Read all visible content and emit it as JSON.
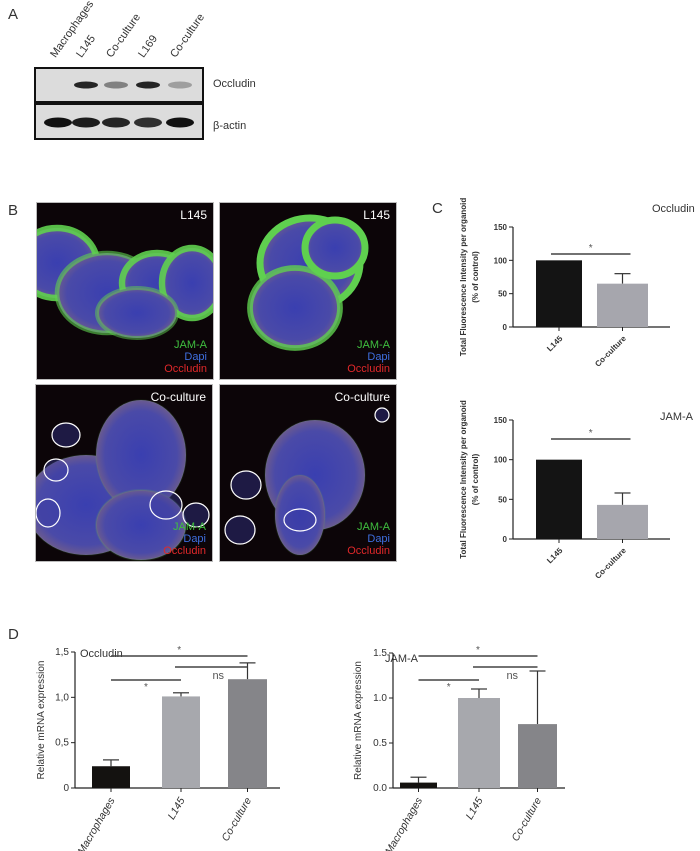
{
  "panels": {
    "a": "A",
    "b": "B",
    "c": "C",
    "d": "D"
  },
  "blot": {
    "lanes": [
      "Macrophages",
      "L145",
      "Co-culture",
      "L169",
      "Co-culture"
    ],
    "rows": [
      {
        "label": "Occludin",
        "band_intensity": [
          0,
          0.9,
          0.45,
          0.9,
          0.3
        ]
      },
      {
        "label": "β-actin",
        "band_intensity": [
          1,
          0.95,
          0.9,
          0.85,
          1
        ]
      }
    ]
  },
  "microscopy": {
    "images": [
      {
        "condition": "L145"
      },
      {
        "condition": "L145"
      },
      {
        "condition": "Co-culture"
      },
      {
        "condition": "Co-culture"
      }
    ],
    "channels": [
      {
        "name": "JAM-A",
        "color": "#3fbf3f"
      },
      {
        "name": "Dapi",
        "color": "#3f6fdf"
      },
      {
        "name": "Occludin",
        "color": "#e0282a"
      }
    ]
  },
  "chart_data": [
    {
      "id": "c-occludin",
      "type": "bar",
      "title": "Occludin",
      "ylabel_lines": [
        "Total Fluorescence Intensity per organoid",
        "(% of control)"
      ],
      "categories": [
        "L145",
        "Co-culture"
      ],
      "values": [
        100,
        65
      ],
      "errors": [
        0,
        15
      ],
      "colors": [
        "#141414",
        "#a6a6ad"
      ],
      "ylim": [
        0,
        150
      ],
      "yticks": [
        0,
        50,
        100,
        150
      ],
      "ytick_labels": [
        "0",
        "50",
        "100",
        "150"
      ],
      "annotations": [
        {
          "from": 0,
          "to": 1,
          "label": "*"
        }
      ]
    },
    {
      "id": "c-jama",
      "type": "bar",
      "title": "JAM-A",
      "ylabel_lines": [
        "Total Fluorescence Intensity per organoid",
        "(% of control)"
      ],
      "categories": [
        "L145",
        "Co-culture"
      ],
      "values": [
        100,
        43
      ],
      "errors": [
        0,
        15
      ],
      "colors": [
        "#141414",
        "#a6a6ad"
      ],
      "ylim": [
        0,
        150
      ],
      "yticks": [
        0,
        50,
        100,
        150
      ],
      "ytick_labels": [
        "0",
        "50",
        "100",
        "150"
      ],
      "annotations": [
        {
          "from": 0,
          "to": 1,
          "label": "*"
        }
      ]
    },
    {
      "id": "d-occludin",
      "type": "bar",
      "title": "Occludin",
      "ylabel_lines": [
        "Relative mRNA expression"
      ],
      "categories": [
        "Macrophages",
        "L145",
        "Co-culture"
      ],
      "values": [
        0.24,
        1.01,
        1.2
      ],
      "errors": [
        0.07,
        0.04,
        0.18
      ],
      "colors": [
        "#141210",
        "#a7a8ad",
        "#858589"
      ],
      "ylim": [
        0,
        1.5
      ],
      "yticks": [
        0,
        0.5,
        1.0,
        1.5
      ],
      "ytick_labels": [
        "0",
        "0,5",
        "1,0",
        "1,5"
      ],
      "annotations": [
        {
          "from": 0,
          "to": 2,
          "label": "*"
        },
        {
          "from": 1,
          "to": 2,
          "label": "ns"
        },
        {
          "from": 0,
          "to": 1,
          "label": "*"
        }
      ]
    },
    {
      "id": "d-jama",
      "type": "bar",
      "title": "JAM-A",
      "ylabel_lines": [
        "Relative mRNA expression"
      ],
      "categories": [
        "Macrophages",
        "L145",
        "Co-culture"
      ],
      "values": [
        0.06,
        1.0,
        0.71
      ],
      "errors": [
        0.06,
        0.1,
        0.59
      ],
      "colors": [
        "#141210",
        "#a7a8ad",
        "#858589"
      ],
      "ylim": [
        0,
        1.5
      ],
      "yticks": [
        0,
        0.5,
        1.0,
        1.5
      ],
      "ytick_labels": [
        "0.0",
        "0.5",
        "1.0",
        "1.5"
      ],
      "annotations": [
        {
          "from": 0,
          "to": 2,
          "label": "*"
        },
        {
          "from": 1,
          "to": 2,
          "label": "ns"
        },
        {
          "from": 0,
          "to": 1,
          "label": "*"
        }
      ]
    }
  ]
}
